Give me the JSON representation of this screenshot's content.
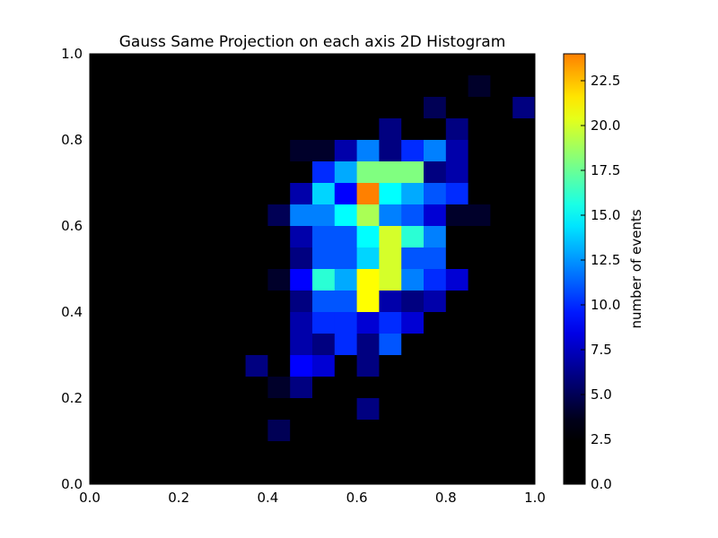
{
  "chart_data": {
    "type": "heatmap",
    "title": "Gauss Same Projection on each axis 2D Histogram",
    "xlabel": "",
    "ylabel": "",
    "xlim": [
      0,
      1
    ],
    "ylim": [
      0,
      1
    ],
    "bins": {
      "x": 20,
      "y": 20
    },
    "x_ticks": [
      "0.0",
      "0.2",
      "0.4",
      "0.6",
      "0.8",
      "1.0"
    ],
    "y_ticks": [
      "0.0",
      "0.2",
      "0.4",
      "0.6",
      "0.8",
      "1.0"
    ],
    "colormap": "jet",
    "colorbar": {
      "label": "number of events",
      "range": [
        0,
        24
      ],
      "ticks": [
        "0.0",
        "2.5",
        "5.0",
        "7.5",
        "10.0",
        "12.5",
        "15.0",
        "17.5",
        "20.0",
        "22.5"
      ]
    },
    "grid": false,
    "counts_row_order": "top-to-bottom (y from 1.0 down to 0.0)",
    "counts": [
      [
        0,
        0,
        0,
        0,
        0,
        0,
        0,
        0,
        0,
        0,
        0,
        1,
        1,
        1,
        1,
        2,
        2,
        0,
        1,
        2
      ],
      [
        0,
        0,
        0,
        0,
        0,
        0,
        0,
        0,
        0,
        0,
        0,
        1,
        1,
        1,
        2,
        2,
        1,
        4,
        1,
        0
      ],
      [
        0,
        0,
        0,
        0,
        0,
        0,
        0,
        0,
        0,
        1,
        1,
        0,
        3,
        3,
        1,
        5,
        2,
        3,
        0,
        6
      ],
      [
        0,
        0,
        0,
        0,
        0,
        0,
        0,
        1,
        0,
        1,
        2,
        2,
        2,
        6,
        2,
        2,
        6,
        2,
        0,
        0
      ],
      [
        0,
        0,
        0,
        0,
        0,
        0,
        1,
        2,
        2,
        4,
        4,
        7,
        12,
        6,
        10,
        12,
        7,
        1,
        0,
        2
      ],
      [
        0,
        0,
        0,
        0,
        0,
        1,
        0,
        1,
        2,
        2,
        10,
        13,
        18,
        18,
        18,
        6,
        7,
        2,
        1,
        0
      ],
      [
        0,
        0,
        0,
        0,
        0,
        0,
        1,
        1,
        1,
        7,
        14,
        9,
        24,
        15,
        13,
        11,
        10,
        2,
        1,
        1
      ],
      [
        0,
        0,
        0,
        0,
        0,
        0,
        0,
        2,
        5,
        12,
        12,
        15,
        19,
        12,
        11,
        8,
        4,
        4,
        2,
        2
      ],
      [
        0,
        0,
        0,
        0,
        1,
        0,
        0,
        0,
        2,
        7,
        11,
        11,
        15,
        20,
        16,
        12,
        3,
        3,
        3,
        1
      ],
      [
        0,
        0,
        0,
        0,
        0,
        1,
        1,
        1,
        1,
        6,
        11,
        11,
        14,
        20,
        11,
        11,
        3,
        3,
        1,
        0
      ],
      [
        0,
        0,
        0,
        0,
        0,
        0,
        2,
        2,
        4,
        9,
        16,
        13,
        21,
        20,
        12,
        10,
        8,
        0,
        0,
        1
      ],
      [
        0,
        0,
        0,
        0,
        1,
        0,
        2,
        3,
        3,
        6,
        11,
        11,
        21,
        7,
        6,
        7,
        2,
        2,
        0,
        0
      ],
      [
        0,
        0,
        0,
        2,
        0,
        1,
        3,
        2,
        1,
        7,
        10,
        10,
        8,
        10,
        8,
        2,
        2,
        0,
        0,
        0
      ],
      [
        0,
        0,
        0,
        0,
        1,
        1,
        2,
        2,
        1,
        7,
        6,
        10,
        6,
        11,
        3,
        1,
        2,
        1,
        0,
        0
      ],
      [
        0,
        1,
        0,
        0,
        0,
        0,
        2,
        6,
        3,
        9,
        8,
        2,
        6,
        3,
        1,
        2,
        0,
        0,
        0,
        0
      ],
      [
        0,
        0,
        0,
        0,
        1,
        0,
        2,
        1,
        4,
        6,
        2,
        1,
        3,
        2,
        0,
        0,
        0,
        0,
        0,
        0
      ],
      [
        0,
        0,
        0,
        0,
        1,
        1,
        2,
        2,
        1,
        0,
        0,
        0,
        6,
        2,
        0,
        0,
        0,
        0,
        0,
        0
      ],
      [
        0,
        0,
        0,
        0,
        0,
        0,
        0,
        0,
        5,
        2,
        0,
        0,
        1,
        0,
        0,
        0,
        0,
        0,
        0,
        0
      ],
      [
        0,
        0,
        0,
        0,
        1,
        1,
        0,
        0,
        0,
        1,
        1,
        0,
        0,
        0,
        0,
        0,
        0,
        0,
        0,
        0
      ],
      [
        0,
        0,
        0,
        0,
        0,
        0,
        0,
        0,
        0,
        0,
        0,
        0,
        0,
        0,
        0,
        0,
        0,
        0,
        0,
        0
      ]
    ]
  }
}
